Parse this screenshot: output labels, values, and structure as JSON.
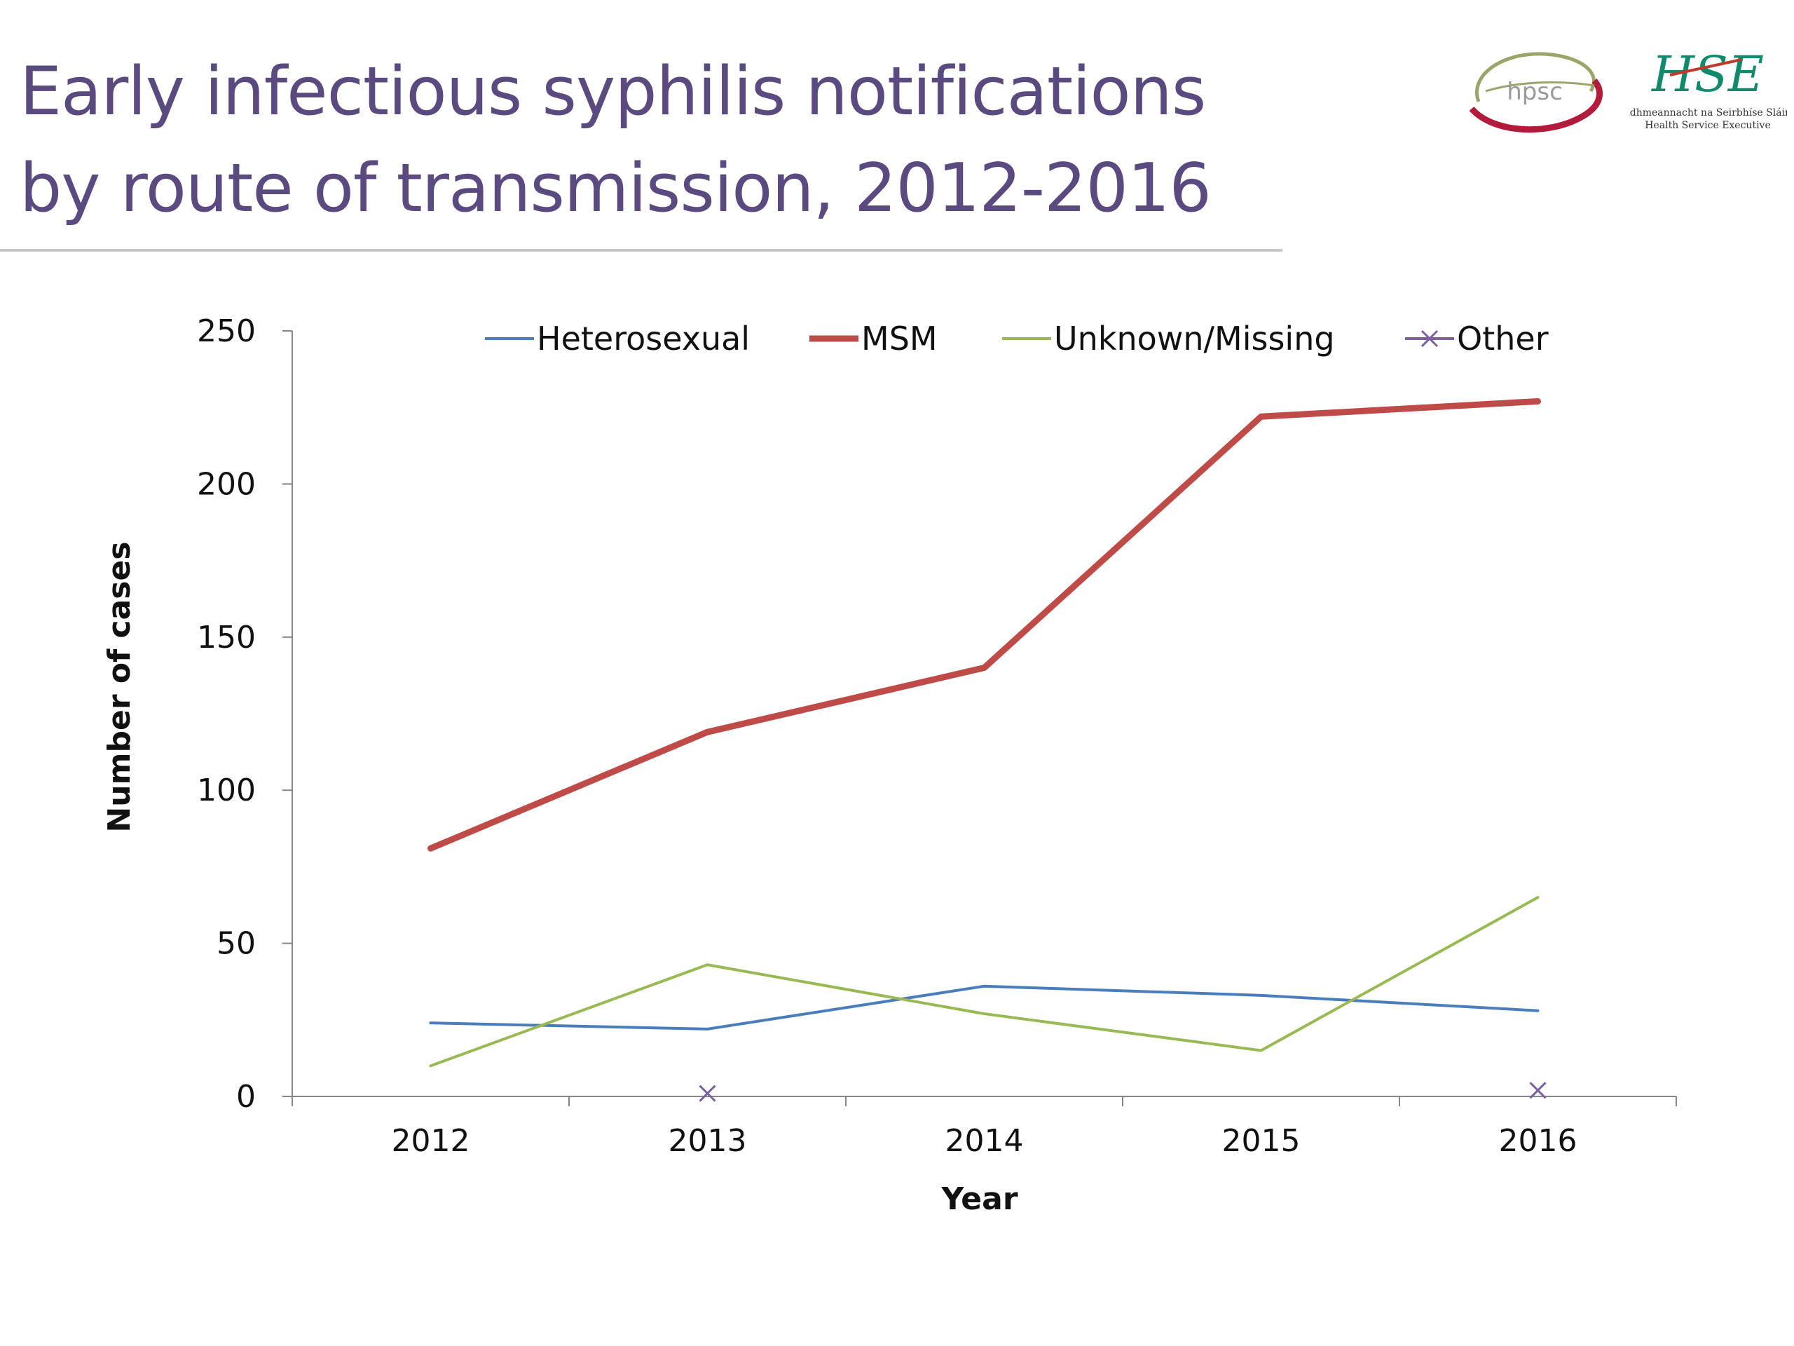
{
  "slide": {
    "title": "Early infectious syphilis notifications by route of transmission, 2012-2016",
    "logos": {
      "hpsc_text": "hpsc",
      "hse_text": "HSE",
      "hse_irish_text": "Feidhmeannacht na Seirbhíse Sláinte",
      "hse_english_text": "Health Service Executive"
    }
  },
  "chart_data": {
    "type": "line",
    "title": "",
    "xlabel": "Year",
    "ylabel": "Number of cases",
    "categories": [
      "2012",
      "2013",
      "2014",
      "2015",
      "2016"
    ],
    "ylim": [
      0,
      250
    ],
    "yticks": [
      0,
      50,
      100,
      150,
      200,
      250
    ],
    "grid": false,
    "legend": "top",
    "series": [
      {
        "name": "Heterosexual",
        "color": "#4a7ebb",
        "style": "line",
        "values": [
          24,
          22,
          36,
          33,
          28
        ]
      },
      {
        "name": "MSM",
        "color": "#be4b48",
        "style": "thick-line",
        "values": [
          81,
          119,
          140,
          222,
          227
        ]
      },
      {
        "name": "Unknown/Missing",
        "color": "#98b954",
        "style": "line",
        "values": [
          10,
          43,
          27,
          15,
          65
        ]
      },
      {
        "name": "Other",
        "color": "#7d60a0",
        "style": "x-markers",
        "values": [
          null,
          1,
          null,
          null,
          2
        ]
      }
    ]
  }
}
